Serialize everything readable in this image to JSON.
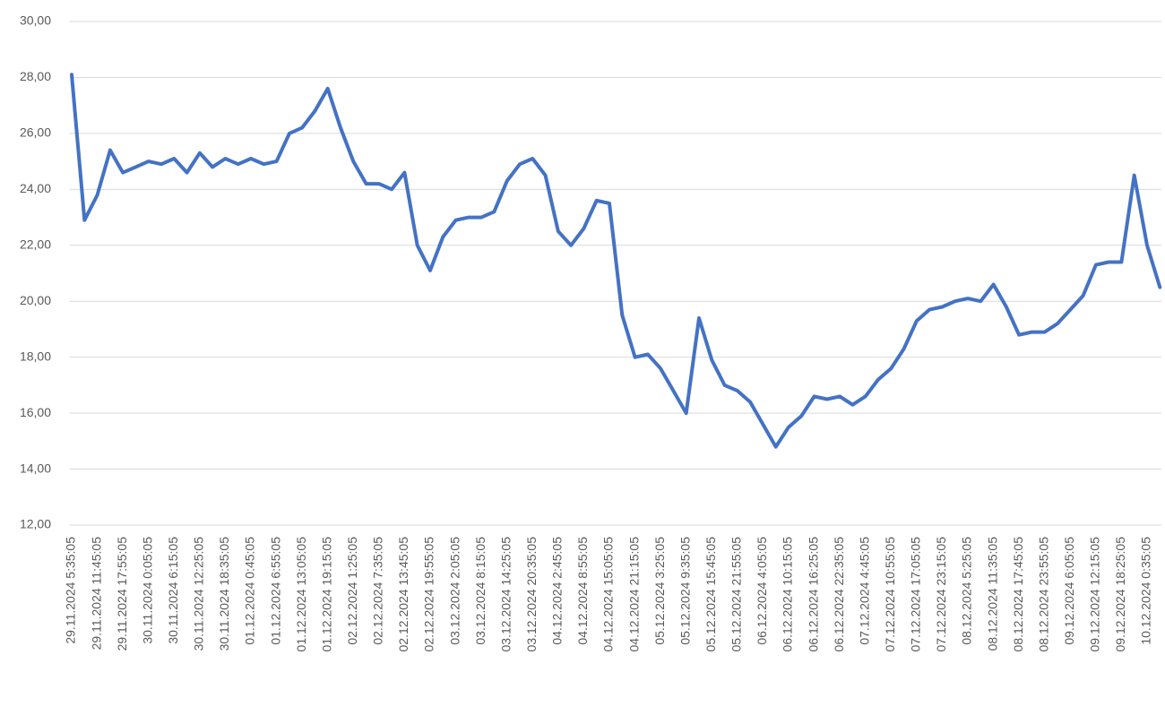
{
  "chart_data": {
    "type": "line",
    "categories": [
      "29.11.2024 5:35:05",
      null,
      "29.11.2024 11:45:05",
      null,
      "29.11.2024 17:55:05",
      null,
      "30.11.2024 0:05:05",
      null,
      "30.11.2024 6:15:05",
      null,
      "30.11.2024 12:25:05",
      null,
      "30.11.2024 18:35:05",
      null,
      "01.12.2024 0:45:05",
      null,
      "01.12.2024 6:55:05",
      null,
      "01.12.2024 13:05:05",
      null,
      "01.12.2024 19:15:05",
      null,
      "02.12.2024 1:25:05",
      null,
      "02.12.2024 7:35:05",
      null,
      "02.12.2024 13:45:05",
      null,
      "02.12.2024 19:55:05",
      null,
      "03.12.2024 2:05:05",
      null,
      "03.12.2024 8:15:05",
      null,
      "03.12.2024 14:25:05",
      null,
      "03.12.2024 20:35:05",
      null,
      "04.12.2024 2:45:05",
      null,
      "04.12.2024 8:55:05",
      null,
      "04.12.2024 15:05:05",
      null,
      "04.12.2024 21:15:05",
      null,
      "05.12.2024 3:25:05",
      null,
      "05.12.2024 9:35:05",
      null,
      "05.12.2024 15:45:05",
      null,
      "05.12.2024 21:55:05",
      null,
      "06.12.2024 4:05:05",
      null,
      "06.12.2024 10:15:05",
      null,
      "06.12.2024 16:25:05",
      null,
      "06.12.2024 22:35:05",
      null,
      "07.12.2024 4:45:05",
      null,
      "07.12.2024 10:55:05",
      null,
      "07.12.2024 17:05:05",
      null,
      "07.12.2024 23:15:05",
      null,
      "08.12.2024 5:25:05",
      null,
      "08.12.2024 11:35:05",
      null,
      "08.12.2024 17:45:05",
      null,
      "08.12.2024 23:55:05",
      null,
      "09.12.2024 6:05:05",
      null,
      "09.12.2024 12:15:05",
      null,
      "09.12.2024 18:25:05",
      null,
      "10.12.2024 0:35:05",
      null
    ],
    "values": [
      28.1,
      22.9,
      23.8,
      25.4,
      24.6,
      24.8,
      25.0,
      24.9,
      25.1,
      24.6,
      25.3,
      24.8,
      25.1,
      24.9,
      25.1,
      24.9,
      25.0,
      26.0,
      26.2,
      26.8,
      27.6,
      26.2,
      25.0,
      24.2,
      24.2,
      24.0,
      24.6,
      22.0,
      21.1,
      22.3,
      22.9,
      23.0,
      23.0,
      23.2,
      24.3,
      24.9,
      25.1,
      24.5,
      22.5,
      22.0,
      22.6,
      23.6,
      23.5,
      19.5,
      18.0,
      18.1,
      17.6,
      16.8,
      16.0,
      19.4,
      17.9,
      17.0,
      16.8,
      16.4,
      15.6,
      14.8,
      15.5,
      15.9,
      16.6,
      16.5,
      16.6,
      16.3,
      16.6,
      17.2,
      17.6,
      18.3,
      19.3,
      19.7,
      19.8,
      20.0,
      20.1,
      20.0,
      20.6,
      19.8,
      18.8,
      18.9,
      18.9,
      19.2,
      19.7,
      20.2,
      21.3,
      21.4,
      21.4,
      24.5,
      22.0,
      20.5
    ],
    "color": "#4472c4",
    "ylim": [
      12,
      30
    ],
    "yticks": [
      {
        "value": 12,
        "label": "12,00"
      },
      {
        "value": 14,
        "label": "14,00"
      },
      {
        "value": 16,
        "label": "16,00"
      },
      {
        "value": 18,
        "label": "18,00"
      },
      {
        "value": 20,
        "label": "20,00"
      },
      {
        "value": 22,
        "label": "22,00"
      },
      {
        "value": 24,
        "label": "24,00"
      },
      {
        "value": 26,
        "label": "26,00"
      },
      {
        "value": 28,
        "label": "28,00"
      },
      {
        "value": 30,
        "label": "30,00"
      }
    ],
    "grid": true
  }
}
